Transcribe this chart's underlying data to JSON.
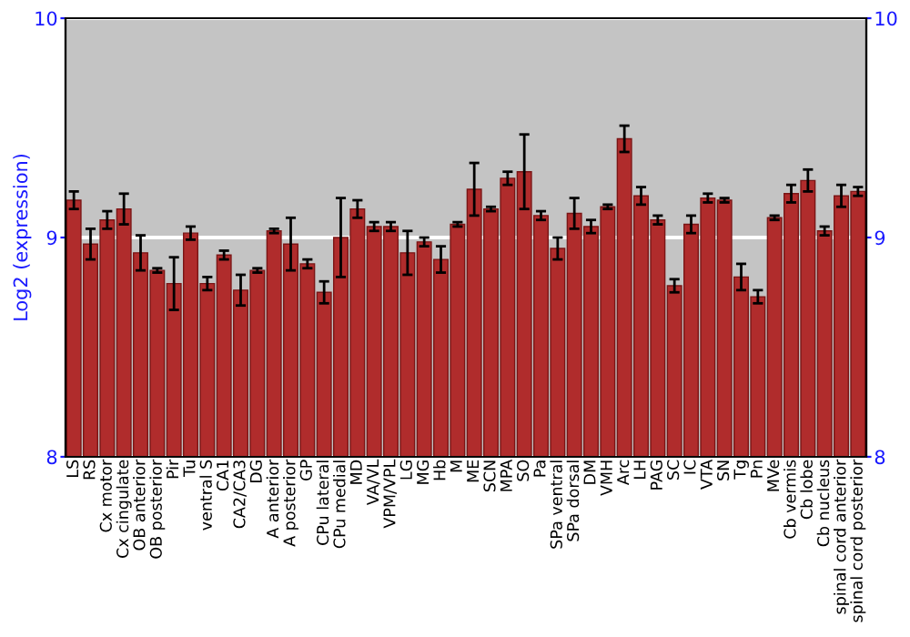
{
  "chart_data": {
    "type": "bar",
    "ylabel": "Log2 (expression)",
    "categories": [
      "LS",
      "RS",
      "Cx motor",
      "Cx cingulate",
      "OB anterior",
      "OB posterior",
      "Pir",
      "Tu",
      "ventral S",
      "CA1",
      "CA2/CA3",
      "DG",
      "A anterior",
      "A posterior",
      "GP",
      "CPu lateral",
      "CPu medial",
      "MD",
      "VA/VL",
      "VPM/VPL",
      "LG",
      "MG",
      "Hb",
      "M",
      "ME",
      "SCN",
      "MPA",
      "SO",
      "Pa",
      "SPa ventral",
      "SPa dorsal",
      "DM",
      "VMH",
      "Arc",
      "LH",
      "PAG",
      "SC",
      "IC",
      "VTA",
      "SN",
      "Tg",
      "Pn",
      "MVe",
      "Cb vermis",
      "Cb lobe",
      "Cb nucleus",
      "spinal cord anterior",
      "spinal cord posterior"
    ],
    "values": [
      9.17,
      8.97,
      9.08,
      9.13,
      8.93,
      8.85,
      8.79,
      9.02,
      8.79,
      8.92,
      8.76,
      8.85,
      9.03,
      8.97,
      8.88,
      8.75,
      9.0,
      9.13,
      9.05,
      9.05,
      8.93,
      8.98,
      8.9,
      9.06,
      9.22,
      9.13,
      9.27,
      9.3,
      9.1,
      8.95,
      9.11,
      9.05,
      9.14,
      9.45,
      9.19,
      9.08,
      8.78,
      9.06,
      9.18,
      9.17,
      8.82,
      8.73,
      9.09,
      9.2,
      9.26,
      9.03,
      9.19,
      9.21
    ],
    "errors": [
      0.04,
      0.07,
      0.04,
      0.07,
      0.08,
      0.01,
      0.12,
      0.03,
      0.03,
      0.02,
      0.07,
      0.01,
      0.01,
      0.12,
      0.02,
      0.05,
      0.18,
      0.04,
      0.02,
      0.02,
      0.1,
      0.02,
      0.06,
      0.01,
      0.12,
      0.01,
      0.03,
      0.17,
      0.02,
      0.05,
      0.07,
      0.03,
      0.01,
      0.06,
      0.04,
      0.02,
      0.03,
      0.04,
      0.02,
      0.01,
      0.06,
      0.03,
      0.01,
      0.04,
      0.05,
      0.02,
      0.05,
      0.02
    ],
    "color": "#b02c2c",
    "ylim": [
      8,
      10
    ],
    "yticks": [
      8,
      9,
      10
    ],
    "y2lim": [
      8,
      10
    ],
    "y2ticks": [
      8,
      9,
      10
    ],
    "grid": "y"
  }
}
